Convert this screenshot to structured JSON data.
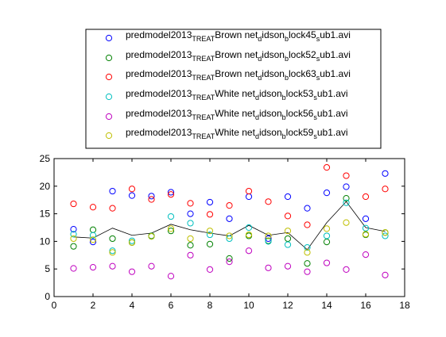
{
  "chart_data": {
    "type": "scatter",
    "xlim": [
      0,
      18
    ],
    "ylim": [
      0,
      25
    ],
    "xticks": [
      0,
      2,
      4,
      6,
      8,
      10,
      12,
      14,
      16,
      18
    ],
    "yticks": [
      0,
      5,
      10,
      15,
      20,
      25
    ],
    "grid": false,
    "legend_position": "top-center-outside",
    "x": [
      1,
      2,
      3,
      4,
      5,
      6,
      7,
      8,
      9,
      10,
      11,
      12,
      13,
      14,
      15,
      16,
      17
    ],
    "series": [
      {
        "name": "predmodel2013_TREAT_Brown net_didson_block45_sub1.avi",
        "legend_parts": [
          {
            "t": "predmodel2013",
            "s": "n"
          },
          {
            "t": "TREAT",
            "s": "sub"
          },
          {
            "t": "Brown net",
            "s": "n"
          },
          {
            "t": "d",
            "s": "sub"
          },
          {
            "t": "idson",
            "s": "n"
          },
          {
            "t": "b",
            "s": "sub"
          },
          {
            "t": "lock45",
            "s": "n"
          },
          {
            "t": "s",
            "s": "sub"
          },
          {
            "t": "ub1.avi",
            "s": "n"
          }
        ],
        "color": "#0000ff",
        "values": [
          12.2,
          9.9,
          19.1,
          18.3,
          18.2,
          18.9,
          15.0,
          17.1,
          14.1,
          18.1,
          10.5,
          18.1,
          16.0,
          18.8,
          19.9,
          14.1,
          22.3
        ]
      },
      {
        "name": "predmodel2013_TREAT_Brown net_didson_block52_sub1.avi",
        "legend_parts": [
          {
            "t": "predmodel2013",
            "s": "n"
          },
          {
            "t": "TREAT",
            "s": "sub"
          },
          {
            "t": "Brown net",
            "s": "n"
          },
          {
            "t": "d",
            "s": "sub"
          },
          {
            "t": "idson",
            "s": "n"
          },
          {
            "t": "b",
            "s": "sub"
          },
          {
            "t": "lock52",
            "s": "n"
          },
          {
            "t": "s",
            "s": "sub"
          },
          {
            "t": "ub1.avi",
            "s": "n"
          }
        ],
        "color": "#008000",
        "values": [
          9.1,
          12.1,
          10.5,
          9.8,
          11.0,
          11.9,
          9.3,
          9.5,
          6.9,
          11.0,
          10.1,
          10.5,
          6.0,
          9.9,
          17.8,
          11.2,
          11.6
        ]
      },
      {
        "name": "predmodel2013_TREAT_Brown net_didson_block63_sub1.avi",
        "legend_parts": [
          {
            "t": "predmodel2013",
            "s": "n"
          },
          {
            "t": "TREAT",
            "s": "sub"
          },
          {
            "t": "Brown net",
            "s": "n"
          },
          {
            "t": "d",
            "s": "sub"
          },
          {
            "t": "idson",
            "s": "n"
          },
          {
            "t": "b",
            "s": "sub"
          },
          {
            "t": "lock63",
            "s": "n"
          },
          {
            "t": "s",
            "s": "sub"
          },
          {
            "t": "ub1.avi",
            "s": "n"
          }
        ],
        "color": "#ff0000",
        "values": [
          16.8,
          16.2,
          16.0,
          19.5,
          17.6,
          18.5,
          16.9,
          14.9,
          16.5,
          19.1,
          17.2,
          14.6,
          13.0,
          23.4,
          21.9,
          18.1,
          19.5
        ]
      },
      {
        "name": "predmodel2013_TREAT_White net_didson_block53_sub1.avi",
        "legend_parts": [
          {
            "t": "predmodel2013",
            "s": "n"
          },
          {
            "t": "TREAT",
            "s": "sub"
          },
          {
            "t": "White net",
            "s": "n"
          },
          {
            "t": "d",
            "s": "sub"
          },
          {
            "t": "idson",
            "s": "n"
          },
          {
            "t": "b",
            "s": "sub"
          },
          {
            "t": "lock53",
            "s": "n"
          },
          {
            "t": "s",
            "s": "sub"
          },
          {
            "t": "ub1.avi",
            "s": "n"
          }
        ],
        "color": "#00bfbf",
        "values": [
          11.3,
          11.1,
          8.3,
          10.1,
          10.9,
          14.5,
          13.3,
          11.2,
          10.5,
          12.5,
          10.0,
          9.4,
          8.9,
          11.0,
          17.0,
          12.4,
          11.0
        ]
      },
      {
        "name": "predmodel2013_TREAT_White net_didson_block56_sub1.avi",
        "legend_parts": [
          {
            "t": "predmodel2013",
            "s": "n"
          },
          {
            "t": "TREAT",
            "s": "sub"
          },
          {
            "t": "White net",
            "s": "n"
          },
          {
            "t": "d",
            "s": "sub"
          },
          {
            "t": "idson",
            "s": "n"
          },
          {
            "t": "b",
            "s": "sub"
          },
          {
            "t": "lock56",
            "s": "n"
          },
          {
            "t": "s",
            "s": "sub"
          },
          {
            "t": "ub1.avi",
            "s": "n"
          }
        ],
        "color": "#bf00bf",
        "values": [
          5.1,
          5.3,
          5.5,
          4.5,
          5.5,
          3.7,
          7.5,
          4.9,
          6.3,
          8.3,
          5.2,
          5.5,
          4.5,
          6.1,
          4.9,
          7.6,
          3.9
        ]
      },
      {
        "name": "predmodel2013_TREAT_White net_didson_block59_sub1.avi",
        "legend_parts": [
          {
            "t": "predmodel2013",
            "s": "n"
          },
          {
            "t": "TREAT",
            "s": "sub"
          },
          {
            "t": "White net",
            "s": "n"
          },
          {
            "t": "d",
            "s": "sub"
          },
          {
            "t": "idson",
            "s": "n"
          },
          {
            "t": "b",
            "s": "sub"
          },
          {
            "t": "lock59",
            "s": "n"
          },
          {
            "t": "s",
            "s": "sub"
          },
          {
            "t": "ub1.avi",
            "s": "n"
          }
        ],
        "color": "#bfbf00",
        "values": [
          10.5,
          10.3,
          8.0,
          9.8,
          10.9,
          12.3,
          10.5,
          11.9,
          11.0,
          11.2,
          11.0,
          11.9,
          8.0,
          12.3,
          13.4,
          11.3,
          11.6
        ]
      }
    ],
    "mean_line": {
      "color": "#000000",
      "values": [
        10.8,
        10.6,
        12.4,
        11.1,
        11.5,
        13.1,
        12.1,
        11.5,
        11.0,
        12.9,
        11.1,
        11.6,
        8.5,
        13.4,
        17.2,
        12.5,
        11.8
      ]
    }
  }
}
